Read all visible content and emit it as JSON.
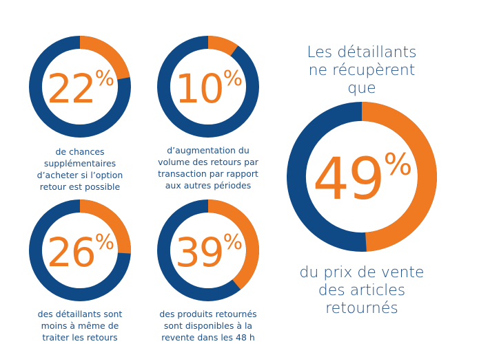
{
  "colors": {
    "accent": "#ef7a22",
    "brand": "#0f4a86",
    "text": "#1c4f87"
  },
  "chart_data": [
    {
      "type": "pie",
      "variant": "donut",
      "value": 22,
      "unit": "%",
      "label": "22",
      "caption_lines": [
        "de chances",
        "supplémentaires",
        "d’acheter si l’option",
        "retour est possible"
      ]
    },
    {
      "type": "pie",
      "variant": "donut",
      "value": 10,
      "unit": "%",
      "label": "10",
      "caption_lines": [
        "d’augmentation du",
        "volume des retours par",
        "transaction par rapport",
        "aux autres périodes"
      ]
    },
    {
      "type": "pie",
      "variant": "donut",
      "value": 26,
      "unit": "%",
      "label": "26",
      "caption_lines": [
        "des détaillants sont",
        "moins à même de",
        "traiter les retours"
      ]
    },
    {
      "type": "pie",
      "variant": "donut",
      "value": 39,
      "unit": "%",
      "label": "39",
      "caption_lines": [
        "des produits retournés",
        "sont disponibles à la",
        "revente dans les 48 h"
      ]
    },
    {
      "type": "pie",
      "variant": "donut",
      "value": 49,
      "unit": "%",
      "label": "49",
      "headline_lines": [
        "Les détaillants",
        "ne récupèrent",
        "que"
      ],
      "caption_lines": [
        "du prix de vente",
        "des articles",
        "retournés"
      ]
    }
  ]
}
